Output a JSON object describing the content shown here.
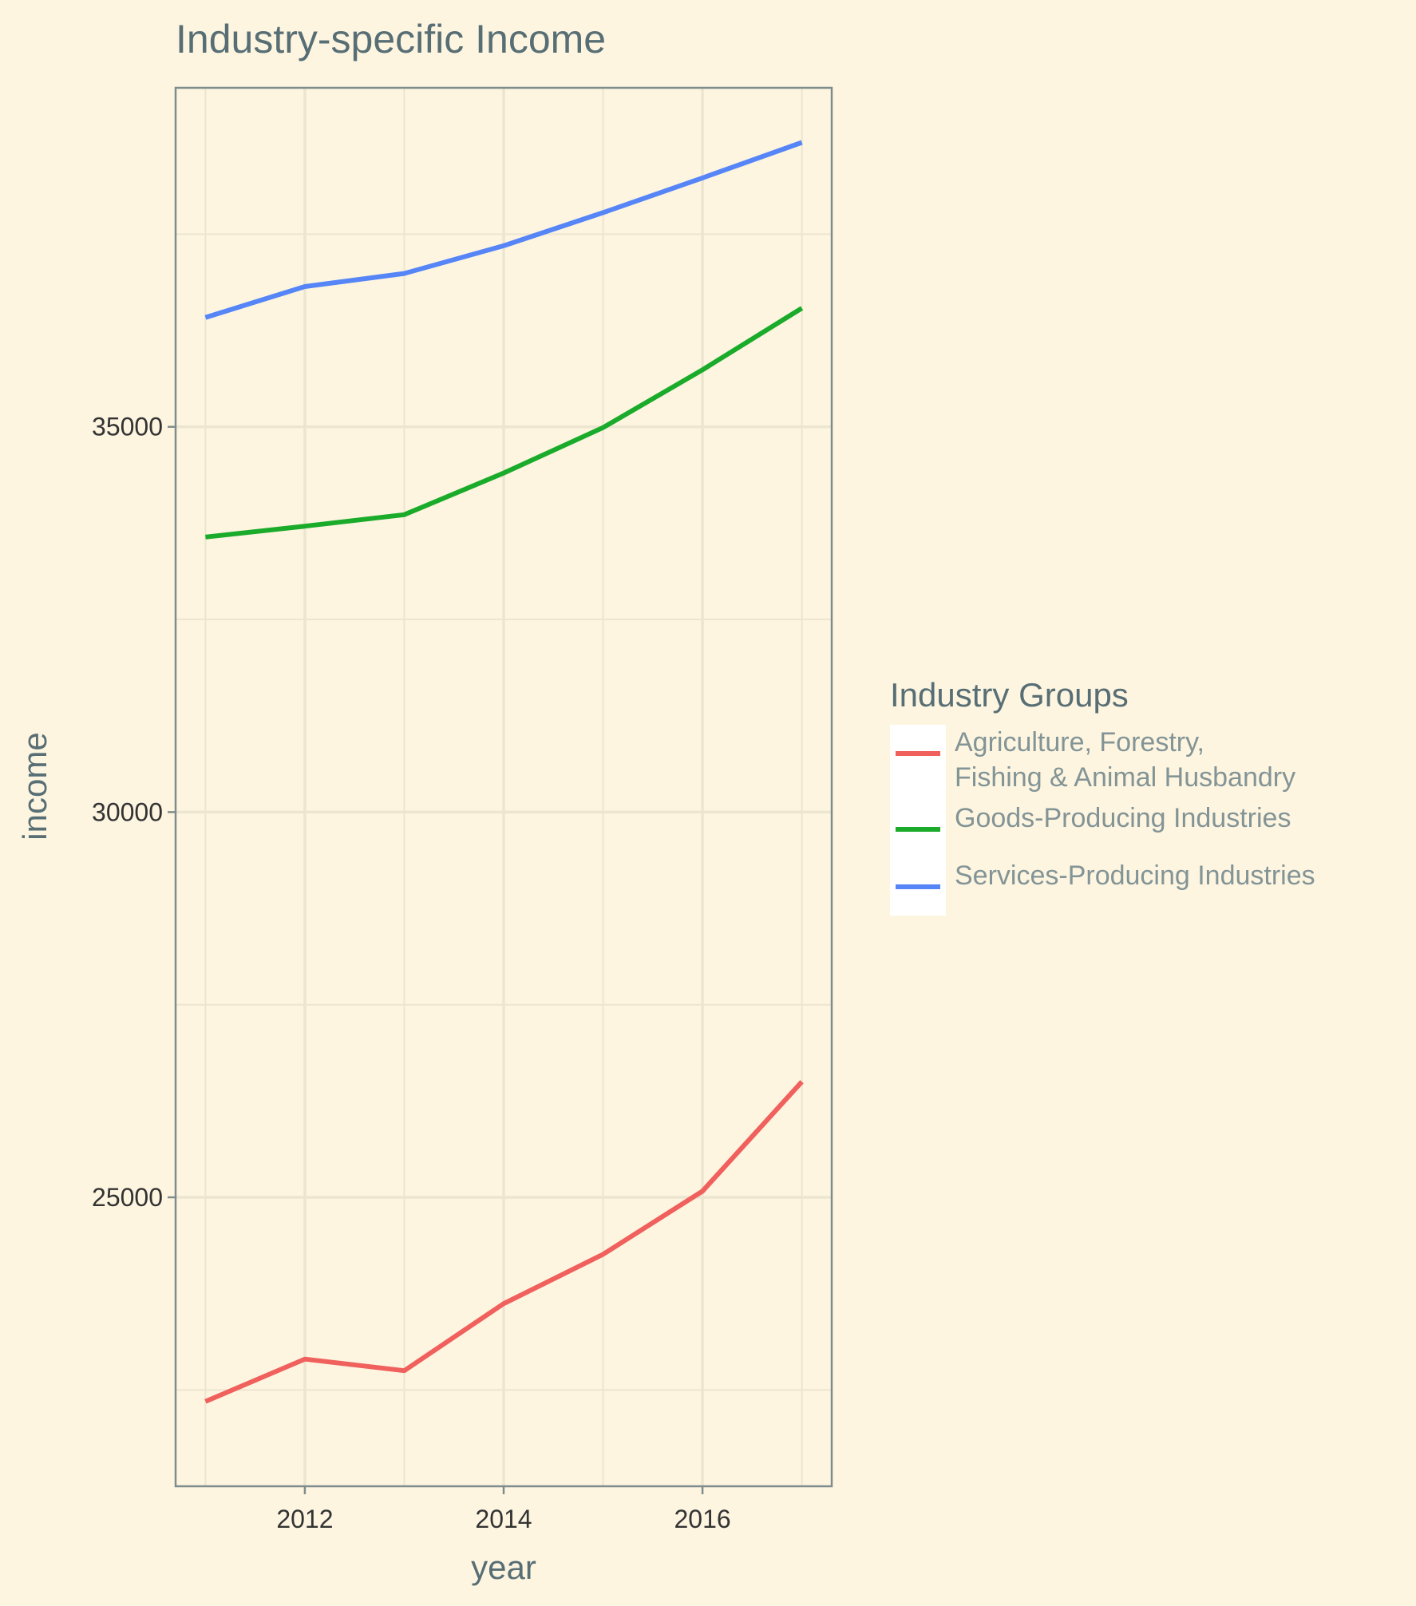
{
  "chart_data": {
    "type": "line",
    "title": "Industry-specific Income",
    "xlabel": "year",
    "ylabel": "income",
    "x": [
      2011,
      2012,
      2013,
      2014,
      2015,
      2016,
      2017
    ],
    "xlim": [
      2010.7,
      2017.3
    ],
    "ylim": [
      21250,
      39400
    ],
    "x_ticks": [
      2012,
      2014,
      2016
    ],
    "y_ticks": [
      25000,
      30000,
      35000
    ],
    "y_minor_ticks": [
      22500,
      27500,
      32500,
      37500
    ],
    "grid": true,
    "legend": {
      "title": "Industry Groups",
      "placement": "right"
    },
    "series": [
      {
        "name": "Agriculture, Forestry,\nFishing & Animal Husbandry",
        "legend_lines": [
          "Agriculture, Forestry,",
          "Fishing & Animal Husbandry"
        ],
        "color": "#f0605d",
        "values": [
          22350,
          22900,
          22750,
          23620,
          24260,
          25080,
          26500
        ]
      },
      {
        "name": "Goods-Producing Industries",
        "legend_lines": [
          "Goods-Producing Industries"
        ],
        "color": "#1aab2a",
        "values": [
          33570,
          33710,
          33860,
          34400,
          34990,
          35740,
          36540
        ]
      },
      {
        "name": "Services-Producing Industries",
        "legend_lines": [
          "Services-Producing Industries"
        ],
        "color": "#5685f7",
        "values": [
          36420,
          36820,
          36990,
          37350,
          37780,
          38230,
          38690
        ]
      }
    ]
  },
  "colors": {
    "background": "#fdf5e0",
    "grid": "#ece5cf",
    "axis": "#7f8c8d"
  }
}
